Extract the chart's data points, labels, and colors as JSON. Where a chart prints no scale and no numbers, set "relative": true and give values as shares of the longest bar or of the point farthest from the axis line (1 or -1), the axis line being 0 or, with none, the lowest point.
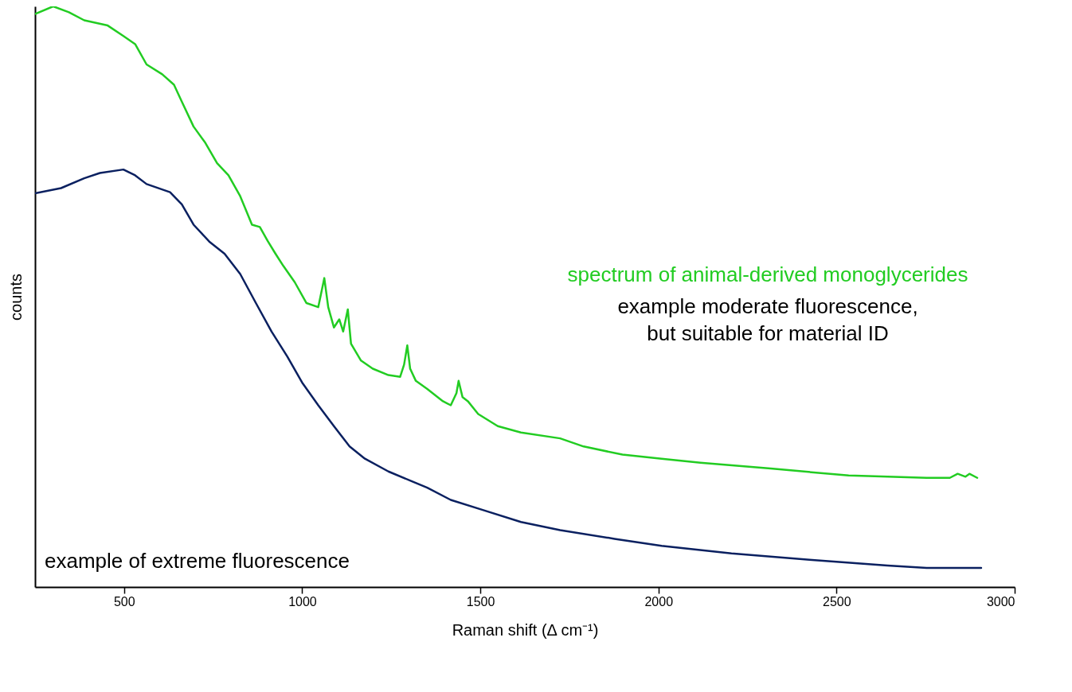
{
  "chart_data": {
    "type": "line",
    "relative": true,
    "xlabel": "Raman shift (Δ cm⁻¹)",
    "ylabel": "counts",
    "xlim": [
      250,
      3000
    ],
    "xticks": [
      500,
      1000,
      1500,
      2000,
      2500,
      3000
    ],
    "grid": false,
    "line_style": "solid",
    "marker": "none",
    "annotations": [
      "spectrum of animal-derived monoglycerides",
      "example moderate fluorescence,\nbut suitable for material ID",
      "example of extreme fluorescence"
    ],
    "series": [
      {
        "color": "#22cc22",
        "x": [
          250,
          301,
          345,
          388,
          454,
          498,
          531,
          563,
          607,
          640,
          662,
          695,
          728,
          761,
          793,
          826,
          859,
          881,
          903,
          925,
          947,
          979,
          1012,
          1045,
          1062,
          1073,
          1089,
          1104,
          1115,
          1128,
          1137,
          1165,
          1198,
          1242,
          1275,
          1286,
          1295,
          1303,
          1319,
          1351,
          1395,
          1417,
          1433,
          1439,
          1450,
          1465,
          1494,
          1549,
          1614,
          1724,
          1790,
          1899,
          2009,
          2118,
          2315,
          2534,
          2753,
          2818,
          2840,
          2862,
          2873,
          2895
        ],
        "values": [
          0.987,
          1,
          0.99,
          0.976,
          0.967,
          0.949,
          0.935,
          0.9,
          0.883,
          0.865,
          0.836,
          0.793,
          0.765,
          0.73,
          0.709,
          0.673,
          0.624,
          0.62,
          0.596,
          0.574,
          0.553,
          0.525,
          0.489,
          0.482,
          0.532,
          0.482,
          0.447,
          0.461,
          0.44,
          0.478,
          0.419,
          0.39,
          0.376,
          0.365,
          0.362,
          0.383,
          0.416,
          0.376,
          0.355,
          0.341,
          0.32,
          0.313,
          0.334,
          0.355,
          0.327,
          0.32,
          0.298,
          0.277,
          0.266,
          0.256,
          0.242,
          0.228,
          0.221,
          0.214,
          0.204,
          0.192,
          0.188,
          0.188,
          0.195,
          0.19,
          0.195,
          0.188
        ]
      },
      {
        "color": "#0a2060",
        "x": [
          250,
          323,
          388,
          432,
          498,
          531,
          563,
          629,
          662,
          695,
          739,
          782,
          826,
          870,
          914,
          958,
          1001,
          1045,
          1089,
          1133,
          1176,
          1242,
          1308,
          1351,
          1417,
          1505,
          1614,
          1724,
          1877,
          2009,
          2205,
          2424,
          2643,
          2753,
          2906
        ],
        "values": [
          0.678,
          0.687,
          0.704,
          0.713,
          0.719,
          0.709,
          0.694,
          0.68,
          0.659,
          0.624,
          0.595,
          0.574,
          0.539,
          0.489,
          0.44,
          0.397,
          0.351,
          0.313,
          0.277,
          0.242,
          0.221,
          0.199,
          0.182,
          0.171,
          0.15,
          0.133,
          0.112,
          0.098,
          0.083,
          0.071,
          0.058,
          0.047,
          0.037,
          0.033,
          0.033
        ]
      }
    ]
  }
}
